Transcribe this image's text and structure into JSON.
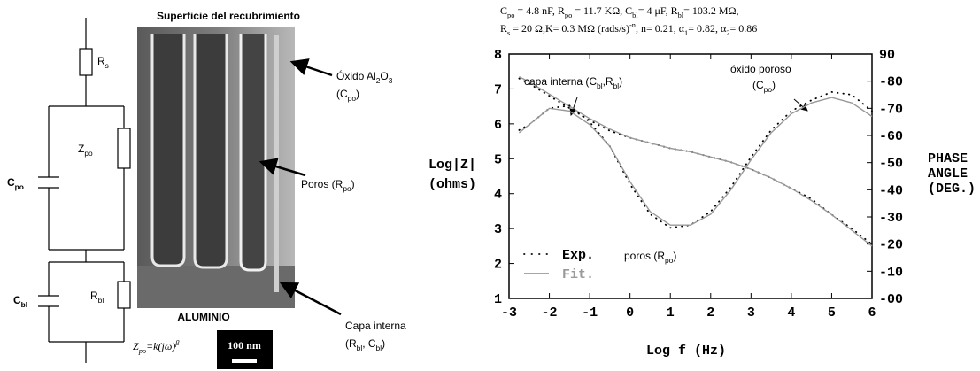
{
  "circuit": {
    "rs": [
      "R",
      {
        "sub": "s"
      }
    ],
    "zpo": [
      "Z",
      {
        "sub": "po"
      }
    ],
    "cpo": [
      "C",
      {
        "sub": "po"
      }
    ],
    "cbl": [
      "C",
      {
        "sub": "bl"
      }
    ],
    "rbl": [
      "R",
      {
        "sub": "bl"
      }
    ],
    "formula": [
      "Z",
      {
        "sub": "po"
      },
      "=k(jω)",
      {
        "sup": "β"
      }
    ]
  },
  "micrograph": {
    "title": "Superficie del recubrimiento",
    "substrate": "ALUMINIO",
    "scale_bar": "100 nm",
    "labels": [
      {
        "lines": [
          [
            "Óxido Al",
            {
              "sub": "2"
            },
            "O",
            {
              "sub": "3"
            }
          ],
          [
            "(C",
            {
              "sub": "po"
            },
            ")"
          ]
        ]
      },
      {
        "lines": [
          [
            "Poros (R",
            {
              "sub": "po"
            },
            ")"
          ]
        ]
      },
      {
        "lines": [
          [
            "Capa interna"
          ],
          [
            "(R",
            {
              "sub": "bl"
            },
            ", C",
            {
              "sub": "bl"
            },
            ")"
          ]
        ]
      }
    ]
  },
  "chart_data": {
    "type": "line",
    "parameters": [
      [
        "C",
        {
          "sub": "po"
        },
        " = 4.8 nF, R",
        {
          "sub": "po"
        },
        " = 11.7 KΩ, C",
        {
          "sub": "bl"
        },
        "= 4 μF, R",
        {
          "sub": "bl"
        },
        "= 103.2 MΩ,"
      ],
      [
        "R",
        {
          "sub": "s"
        },
        " = 20 Ω,K= 0.3 MΩ (rads/s)",
        {
          "sup": "-n"
        },
        ", n= 0.21, α",
        {
          "sub": "1"
        },
        "= 0.82, α",
        {
          "sub": "2"
        },
        "= 0.86"
      ]
    ],
    "ylabel": [
      "Log|Z|",
      "(ohms)"
    ],
    "y2label": [
      "PHASE",
      "ANGLE",
      "(DEG.)"
    ],
    "xlabel": "Log f (Hz)",
    "annotations": [
      [
        "capa interna (C",
        {
          "sub": "bl"
        },
        ",R",
        {
          "sub": "bl"
        },
        ")"
      ],
      [
        "óxido poroso"
      ],
      [
        "(C",
        {
          "sub": "po"
        },
        ")"
      ],
      [
        "poros (R",
        {
          "sub": "po"
        },
        ")"
      ]
    ],
    "x": [
      -2.75,
      -2.5,
      -2,
      -1.5,
      -1,
      -0.5,
      0,
      0.5,
      1,
      1.5,
      2,
      2.5,
      3,
      3.5,
      4,
      4.5,
      5,
      5.5,
      6
    ],
    "xlim": [
      -3,
      6
    ],
    "xticks": [
      -3,
      -2,
      -1,
      0,
      1,
      2,
      3,
      4,
      5,
      6
    ],
    "ylim": [
      1,
      8
    ],
    "yticks": [
      1,
      2,
      3,
      4,
      5,
      6,
      7,
      8
    ],
    "y2lim": [
      0,
      -90
    ],
    "y2ticks": [
      {
        "value": 0,
        "label": "-00"
      },
      -10,
      -20,
      -30,
      -40,
      -50,
      -60,
      -70,
      -80,
      {
        "value": -90,
        "label": "90"
      }
    ],
    "series": [
      {
        "name": "Exp.",
        "color": "#000000",
        "style": "dotted",
        "values": [
          7.3,
          7.15,
          6.8,
          6.45,
          6.1,
          5.8,
          5.6,
          5.45,
          5.3,
          5.2,
          5.05,
          4.9,
          4.7,
          4.45,
          4.15,
          3.85,
          3.4,
          3.0,
          2.55
        ]
      },
      {
        "name": "Fit.",
        "color": "#999999",
        "style": "solid",
        "values": [
          7.35,
          7.2,
          6.85,
          6.5,
          6.15,
          5.85,
          5.6,
          5.45,
          5.3,
          5.2,
          5.05,
          4.9,
          4.7,
          4.45,
          4.15,
          3.8,
          3.4,
          2.95,
          2.5
        ]
      },
      {
        "color": "#000000",
        "style": "dotted",
        "axis": "y2",
        "values": [
          -62,
          -64,
          -70,
          -71,
          -65,
          -56,
          -42,
          -31,
          -26,
          -27,
          -32,
          -41,
          -52,
          -62,
          -69,
          -73,
          -76,
          -75,
          -69
        ]
      },
      {
        "color": "#999999",
        "style": "solid",
        "axis": "y2",
        "values": [
          -61,
          -64,
          -70,
          -69,
          -64,
          -56,
          -43,
          -32,
          -27,
          -27,
          -31,
          -40,
          -51,
          -61,
          -68,
          -72,
          -74,
          -72,
          -67
        ]
      }
    ]
  }
}
